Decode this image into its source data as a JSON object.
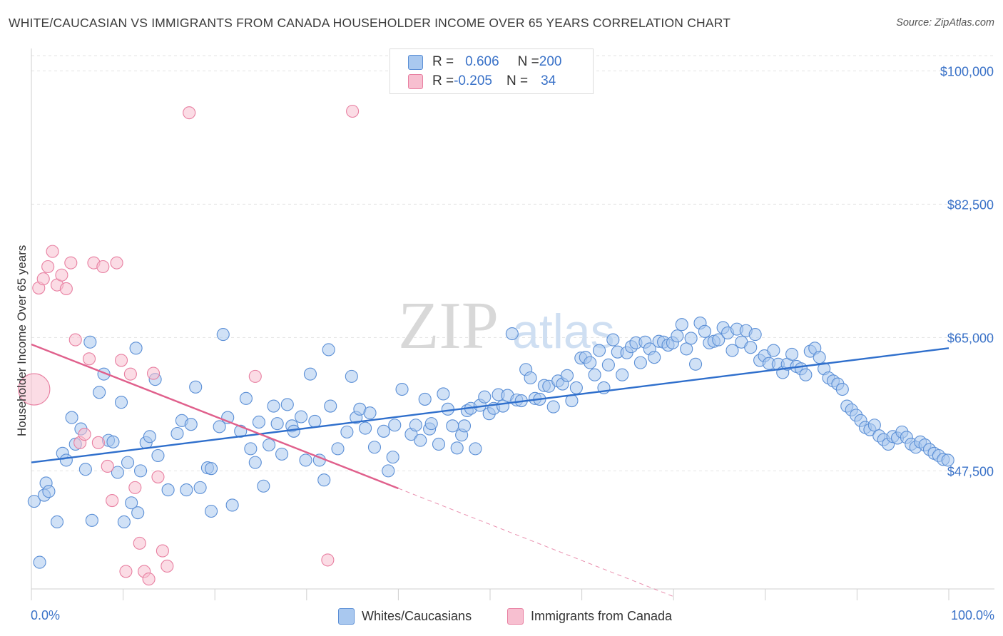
{
  "title": "WHITE/CAUCASIAN VS IMMIGRANTS FROM CANADA HOUSEHOLDER INCOME OVER 65 YEARS CORRELATION CHART",
  "source": "Source: ZipAtlas.com",
  "legend_top": {
    "rows": [
      {
        "r_label": "R = ",
        "r_value": "0.606",
        "n_label": "N = ",
        "n_value": "200"
      },
      {
        "r_label": "R = ",
        "r_value": "-0.205",
        "n_label": "N = ",
        "n_value": "34"
      }
    ]
  },
  "colors": {
    "blue_fill": "#a9c8ef",
    "blue_stroke": "#5b8fd6",
    "blue_line": "#2f6fcc",
    "pink_fill": "#f7bfd0",
    "pink_stroke": "#e87fa1",
    "pink_line": "#e0608c",
    "tick_label": "#3a72c8",
    "grid": "#e3e3e3"
  },
  "chart_data": {
    "type": "scatter",
    "title": "WHITE/CAUCASIAN VS IMMIGRANTS FROM CANADA HOUSEHOLDER INCOME OVER 65 YEARS CORRELATION CHART",
    "xlabel": "",
    "ylabel": "Householder Income Over 65 years",
    "xlim": [
      0,
      100
    ],
    "ylim": [
      32000,
      102000
    ],
    "x_tick_labels": [
      "0.0%",
      "100.0%"
    ],
    "y_ticks": [
      47500,
      65000,
      82500,
      100000
    ],
    "y_tick_labels": [
      "$47,500",
      "$65,000",
      "$82,500",
      "$100,000"
    ],
    "grid": true,
    "legend_position": "top-center and bottom",
    "series": [
      {
        "name": "Whites/Caucasians",
        "points": [
          [
            0.3,
            43.5
          ],
          [
            0.9,
            35.5
          ],
          [
            1.4,
            44.3
          ],
          [
            1.6,
            45.9
          ],
          [
            1.9,
            44.8
          ],
          [
            2.8,
            40.8
          ],
          [
            3.4,
            49.8
          ],
          [
            3.8,
            48.9
          ],
          [
            4.4,
            54.5
          ],
          [
            4.8,
            51.0
          ],
          [
            5.4,
            53.0
          ],
          [
            5.9,
            47.7
          ],
          [
            6.4,
            64.4
          ],
          [
            6.6,
            41.0
          ],
          [
            7.4,
            57.8
          ],
          [
            7.9,
            60.2
          ],
          [
            8.4,
            51.5
          ],
          [
            8.9,
            51.3
          ],
          [
            9.4,
            47.3
          ],
          [
            9.8,
            56.5
          ],
          [
            10.1,
            40.8
          ],
          [
            10.5,
            48.6
          ],
          [
            10.9,
            43.3
          ],
          [
            11.4,
            63.6
          ],
          [
            11.6,
            42.0
          ],
          [
            11.9,
            47.5
          ],
          [
            12.5,
            51.2
          ],
          [
            12.9,
            52.0
          ],
          [
            13.5,
            59.5
          ],
          [
            13.8,
            49.5
          ],
          [
            14.9,
            45.0
          ],
          [
            15.9,
            52.4
          ],
          [
            16.4,
            54.1
          ],
          [
            16.9,
            45.0
          ],
          [
            17.4,
            53.6
          ],
          [
            17.9,
            58.5
          ],
          [
            18.4,
            45.3
          ],
          [
            19.2,
            47.9
          ],
          [
            19.6,
            47.8
          ],
          [
            19.6,
            42.2
          ],
          [
            20.5,
            53.3
          ],
          [
            20.9,
            65.4
          ],
          [
            21.4,
            54.5
          ],
          [
            21.9,
            43.0
          ],
          [
            22.8,
            52.7
          ],
          [
            23.4,
            57.0
          ],
          [
            23.9,
            50.4
          ],
          [
            24.4,
            48.6
          ],
          [
            24.8,
            53.9
          ],
          [
            25.3,
            45.5
          ],
          [
            25.9,
            50.9
          ],
          [
            26.4,
            56.0
          ],
          [
            26.8,
            53.7
          ],
          [
            27.3,
            49.7
          ],
          [
            27.9,
            56.2
          ],
          [
            28.4,
            53.4
          ],
          [
            28.6,
            52.7
          ],
          [
            29.4,
            54.6
          ],
          [
            29.9,
            48.9
          ],
          [
            30.4,
            60.2
          ],
          [
            30.9,
            54.0
          ],
          [
            31.4,
            48.9
          ],
          [
            31.9,
            46.3
          ],
          [
            32.4,
            63.4
          ],
          [
            32.6,
            56.0
          ],
          [
            33.4,
            50.4
          ],
          [
            34.4,
            52.6
          ],
          [
            34.9,
            59.9
          ],
          [
            35.4,
            54.5
          ],
          [
            35.8,
            55.6
          ],
          [
            36.4,
            53.1
          ],
          [
            36.9,
            55.1
          ],
          [
            37.4,
            50.6
          ],
          [
            38.4,
            52.7
          ],
          [
            38.9,
            47.5
          ],
          [
            39.4,
            49.3
          ],
          [
            39.6,
            53.5
          ],
          [
            40.4,
            58.2
          ],
          [
            41.4,
            52.3
          ],
          [
            41.9,
            53.5
          ],
          [
            42.4,
            51.5
          ],
          [
            42.9,
            56.9
          ],
          [
            43.4,
            53.0
          ],
          [
            43.6,
            53.7
          ],
          [
            44.4,
            51.0
          ],
          [
            44.9,
            57.6
          ],
          [
            45.4,
            55.6
          ],
          [
            45.9,
            53.4
          ],
          [
            46.4,
            50.5
          ],
          [
            46.9,
            52.2
          ],
          [
            47.2,
            53.4
          ],
          [
            47.5,
            55.4
          ],
          [
            47.9,
            55.7
          ],
          [
            48.4,
            50.4
          ],
          [
            48.9,
            56.1
          ],
          [
            49.4,
            57.2
          ],
          [
            49.9,
            55.0
          ],
          [
            50.4,
            55.7
          ],
          [
            50.9,
            57.5
          ],
          [
            51.4,
            56.0
          ],
          [
            51.9,
            57.4
          ],
          [
            52.4,
            65.5
          ],
          [
            52.9,
            56.8
          ],
          [
            53.4,
            56.7
          ],
          [
            53.9,
            60.8
          ],
          [
            54.4,
            59.7
          ],
          [
            54.9,
            57.0
          ],
          [
            55.4,
            56.9
          ],
          [
            55.9,
            58.7
          ],
          [
            56.4,
            58.6
          ],
          [
            56.9,
            55.9
          ],
          [
            57.4,
            59.3
          ],
          [
            57.9,
            58.9
          ],
          [
            58.4,
            60.0
          ],
          [
            58.9,
            56.7
          ],
          [
            59.4,
            58.4
          ],
          [
            59.9,
            62.3
          ],
          [
            60.4,
            62.4
          ],
          [
            60.9,
            61.7
          ],
          [
            61.4,
            60.1
          ],
          [
            61.9,
            63.3
          ],
          [
            62.4,
            58.4
          ],
          [
            62.9,
            61.4
          ],
          [
            63.4,
            64.7
          ],
          [
            63.9,
            63.1
          ],
          [
            64.4,
            60.1
          ],
          [
            64.9,
            63.0
          ],
          [
            65.4,
            63.8
          ],
          [
            65.9,
            64.3
          ],
          [
            66.4,
            61.7
          ],
          [
            66.9,
            64.4
          ],
          [
            67.4,
            63.5
          ],
          [
            67.9,
            62.4
          ],
          [
            68.4,
            64.5
          ],
          [
            68.9,
            64.4
          ],
          [
            69.4,
            64.0
          ],
          [
            69.9,
            64.3
          ],
          [
            70.4,
            65.2
          ],
          [
            70.9,
            66.7
          ],
          [
            71.4,
            63.5
          ],
          [
            71.9,
            64.9
          ],
          [
            72.4,
            61.5
          ],
          [
            72.9,
            66.9
          ],
          [
            73.4,
            65.8
          ],
          [
            73.9,
            64.3
          ],
          [
            74.4,
            64.5
          ],
          [
            74.9,
            64.7
          ],
          [
            75.4,
            66.3
          ],
          [
            75.9,
            65.6
          ],
          [
            76.4,
            63.3
          ],
          [
            76.9,
            66.1
          ],
          [
            77.4,
            64.4
          ],
          [
            77.9,
            65.9
          ],
          [
            78.4,
            63.7
          ],
          [
            78.9,
            65.4
          ],
          [
            79.4,
            62.0
          ],
          [
            79.9,
            62.6
          ],
          [
            80.4,
            61.6
          ],
          [
            80.9,
            63.3
          ],
          [
            81.4,
            61.5
          ],
          [
            81.9,
            60.4
          ],
          [
            82.4,
            61.5
          ],
          [
            82.9,
            62.8
          ],
          [
            83.4,
            61.2
          ],
          [
            83.9,
            60.9
          ],
          [
            84.4,
            60.1
          ],
          [
            84.9,
            63.2
          ],
          [
            85.4,
            63.6
          ],
          [
            85.9,
            62.4
          ],
          [
            86.4,
            60.9
          ],
          [
            86.9,
            59.7
          ],
          [
            87.4,
            59.3
          ],
          [
            87.9,
            58.9
          ],
          [
            88.4,
            58.2
          ],
          [
            88.9,
            56.0
          ],
          [
            89.4,
            55.5
          ],
          [
            89.9,
            54.8
          ],
          [
            90.4,
            54.1
          ],
          [
            90.9,
            53.2
          ],
          [
            91.4,
            52.9
          ],
          [
            91.9,
            53.5
          ],
          [
            92.4,
            52.1
          ],
          [
            92.9,
            51.6
          ],
          [
            93.4,
            51.0
          ],
          [
            93.9,
            52.0
          ],
          [
            94.4,
            51.8
          ],
          [
            94.9,
            52.6
          ],
          [
            95.4,
            51.9
          ],
          [
            95.9,
            51.0
          ],
          [
            96.4,
            50.6
          ],
          [
            96.9,
            51.3
          ],
          [
            97.4,
            50.9
          ],
          [
            97.9,
            50.3
          ],
          [
            98.4,
            49.8
          ],
          [
            98.9,
            49.5
          ],
          [
            99.4,
            49.0
          ],
          [
            99.9,
            48.9
          ]
        ],
        "trend": {
          "x": [
            0,
            100
          ],
          "y": [
            48.6,
            63.6
          ]
        }
      },
      {
        "name": "Immigrants from Canada",
        "points": [
          [
            0.3,
            58.2
          ],
          [
            0.8,
            71.5
          ],
          [
            1.3,
            72.7
          ],
          [
            1.8,
            74.3
          ],
          [
            2.3,
            76.3
          ],
          [
            2.8,
            71.9
          ],
          [
            3.3,
            73.2
          ],
          [
            3.8,
            71.4
          ],
          [
            4.3,
            74.8
          ],
          [
            4.8,
            64.7
          ],
          [
            5.3,
            51.2
          ],
          [
            5.8,
            52.3
          ],
          [
            6.3,
            62.2
          ],
          [
            6.8,
            74.8
          ],
          [
            7.3,
            51.2
          ],
          [
            7.8,
            74.3
          ],
          [
            8.3,
            48.1
          ],
          [
            8.8,
            43.6
          ],
          [
            9.3,
            74.8
          ],
          [
            9.8,
            62.0
          ],
          [
            10.3,
            34.3
          ],
          [
            10.8,
            60.2
          ],
          [
            11.3,
            45.3
          ],
          [
            11.8,
            38.0
          ],
          [
            12.3,
            34.3
          ],
          [
            12.8,
            33.3
          ],
          [
            13.3,
            60.3
          ],
          [
            13.8,
            46.7
          ],
          [
            14.3,
            37.0
          ],
          [
            14.8,
            35.0
          ],
          [
            17.2,
            94.5
          ],
          [
            24.4,
            59.9
          ],
          [
            32.3,
            35.8
          ],
          [
            35.0,
            94.7
          ]
        ],
        "trend": {
          "x": [
            0,
            40
          ],
          "y": [
            64.1,
            45.2
          ],
          "dashed_to": {
            "x": 70,
            "y": 31.0
          }
        }
      }
    ]
  },
  "axis": {
    "x_min_label": "0.0%",
    "x_max_label": "100.0%",
    "y_label": "Householder Income Over 65 years"
  },
  "bottom_legend": [
    {
      "label": "Whites/Caucasians"
    },
    {
      "label": "Immigrants from Canada"
    }
  ]
}
